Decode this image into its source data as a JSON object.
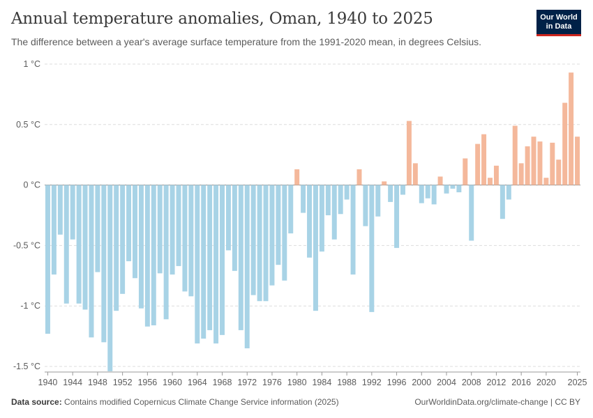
{
  "header": {
    "title": "Annual temperature anomalies, Oman, 1940 to 2025",
    "subtitle": "The difference between a year's average surface temperature from the 1991-2020 mean, in degrees Celsius."
  },
  "logo": {
    "line1": "Our World",
    "line2": "in Data",
    "bg_color": "#002147",
    "accent_color": "#ce261e"
  },
  "footer": {
    "source_label": "Data source:",
    "source_text": "Contains modified Copernicus Climate Change Service information (2025)",
    "credit": "OurWorldinData.org/climate-change | CC BY"
  },
  "colors": {
    "negative": "#a8d3e6",
    "positive": "#f4b89b"
  },
  "chart_data": {
    "type": "bar",
    "title": "Annual temperature anomalies, Oman, 1940 to 2025",
    "ylim": [
      -1.5,
      1
    ],
    "y_ticks": [
      {
        "value": 1,
        "label": "1 °C"
      },
      {
        "value": 0.5,
        "label": "0.5 °C"
      },
      {
        "value": 0,
        "label": "0 °C"
      },
      {
        "value": -0.5,
        "label": "-0.5 °C"
      },
      {
        "value": -1,
        "label": "-1 °C"
      },
      {
        "value": -1.5,
        "label": "-1.5 °C"
      }
    ],
    "x_ticks": [
      "1940",
      "1944",
      "1948",
      "1952",
      "1956",
      "1960",
      "1964",
      "1968",
      "1972",
      "1976",
      "1980",
      "1984",
      "1988",
      "1992",
      "1996",
      "2000",
      "2004",
      "2008",
      "2012",
      "2016",
      "2020",
      "2025"
    ],
    "grid": true,
    "years": [
      1940,
      1941,
      1942,
      1943,
      1944,
      1945,
      1946,
      1947,
      1948,
      1949,
      1950,
      1951,
      1952,
      1953,
      1954,
      1955,
      1956,
      1957,
      1958,
      1959,
      1960,
      1961,
      1962,
      1963,
      1964,
      1965,
      1966,
      1967,
      1968,
      1969,
      1970,
      1971,
      1972,
      1973,
      1974,
      1975,
      1976,
      1977,
      1978,
      1979,
      1980,
      1981,
      1982,
      1983,
      1984,
      1985,
      1986,
      1987,
      1988,
      1989,
      1990,
      1991,
      1992,
      1993,
      1994,
      1995,
      1996,
      1997,
      1998,
      1999,
      2000,
      2001,
      2002,
      2003,
      2004,
      2005,
      2006,
      2007,
      2008,
      2009,
      2010,
      2011,
      2012,
      2013,
      2014,
      2015,
      2016,
      2017,
      2018,
      2019,
      2020,
      2021,
      2022,
      2023,
      2024,
      2025
    ],
    "values": [
      -1.23,
      -0.74,
      -0.41,
      -0.98,
      -0.45,
      -0.98,
      -1.03,
      -1.26,
      -0.72,
      -1.3,
      -1.54,
      -1.04,
      -0.9,
      -0.63,
      -0.77,
      -1.02,
      -1.17,
      -1.16,
      -0.73,
      -1.11,
      -0.74,
      -0.67,
      -0.88,
      -0.92,
      -1.31,
      -1.27,
      -1.2,
      -1.31,
      -1.24,
      -0.54,
      -0.71,
      -1.2,
      -1.35,
      -0.91,
      -0.96,
      -0.96,
      -0.83,
      -0.66,
      -0.79,
      -0.4,
      0.13,
      -0.23,
      -0.6,
      -1.04,
      -0.55,
      -0.25,
      -0.45,
      -0.24,
      -0.12,
      -0.74,
      0.13,
      -0.34,
      -1.05,
      -0.26,
      0.03,
      -0.14,
      -0.52,
      -0.08,
      0.53,
      0.18,
      -0.15,
      -0.11,
      -0.16,
      0.07,
      -0.07,
      -0.03,
      -0.06,
      0.22,
      -0.46,
      0.34,
      0.42,
      0.06,
      0.16,
      -0.28,
      -0.12,
      0.49,
      0.18,
      0.32,
      0.4,
      0.36,
      0.06,
      0.35,
      0.21,
      0.68,
      0.93,
      0.4
    ]
  }
}
